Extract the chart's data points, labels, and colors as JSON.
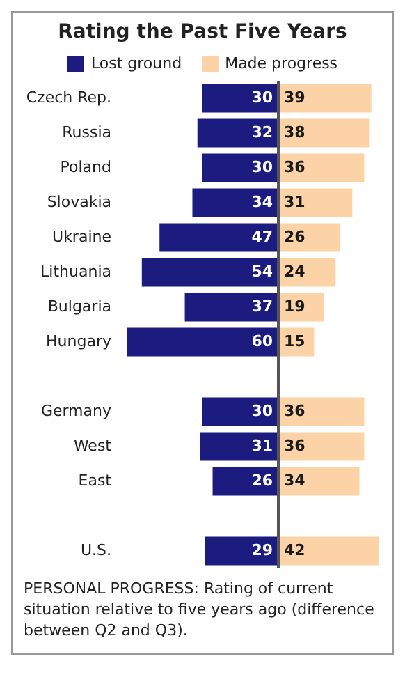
{
  "chart_data": [
    {
      "type": "bar",
      "title": "Rating the Past Five Years",
      "orientation": "horizontal",
      "categories": [
        "Czech Rep.",
        "Russia",
        "Poland",
        "Slovakia",
        "Ukraine",
        "Lithuania",
        "Bulgaria",
        "Hungary",
        null,
        "Germany",
        "West",
        "East",
        null,
        "U.S."
      ],
      "series": [
        {
          "name": "Lost ground",
          "color": "#1b1b80",
          "values": [
            30,
            32,
            30,
            34,
            47,
            54,
            37,
            60,
            null,
            30,
            31,
            26,
            null,
            29
          ]
        }
      ],
      "xlim": [
        60,
        0
      ],
      "tick_labels": "y",
      "legend": "top",
      "data_labels": true,
      "annotations": [
        "PERSONAL PROGRESS: Rating of current situation relative to five years ago (difference between Q2 and Q3)."
      ]
    },
    {
      "type": "bar",
      "orientation": "horizontal",
      "categories": [
        null,
        null,
        null,
        null,
        null,
        null,
        null,
        null,
        null,
        null,
        null,
        null,
        null,
        null
      ],
      "series": [
        {
          "name": "Made progress",
          "color": "#fcd3a6",
          "values": [
            39,
            38,
            36,
            31,
            26,
            24,
            19,
            15,
            null,
            36,
            36,
            34,
            null,
            42
          ]
        }
      ],
      "xlim": [
        0,
        42
      ],
      "tick_labels": false,
      "legend": "top",
      "data_labels": true
    }
  ]
}
